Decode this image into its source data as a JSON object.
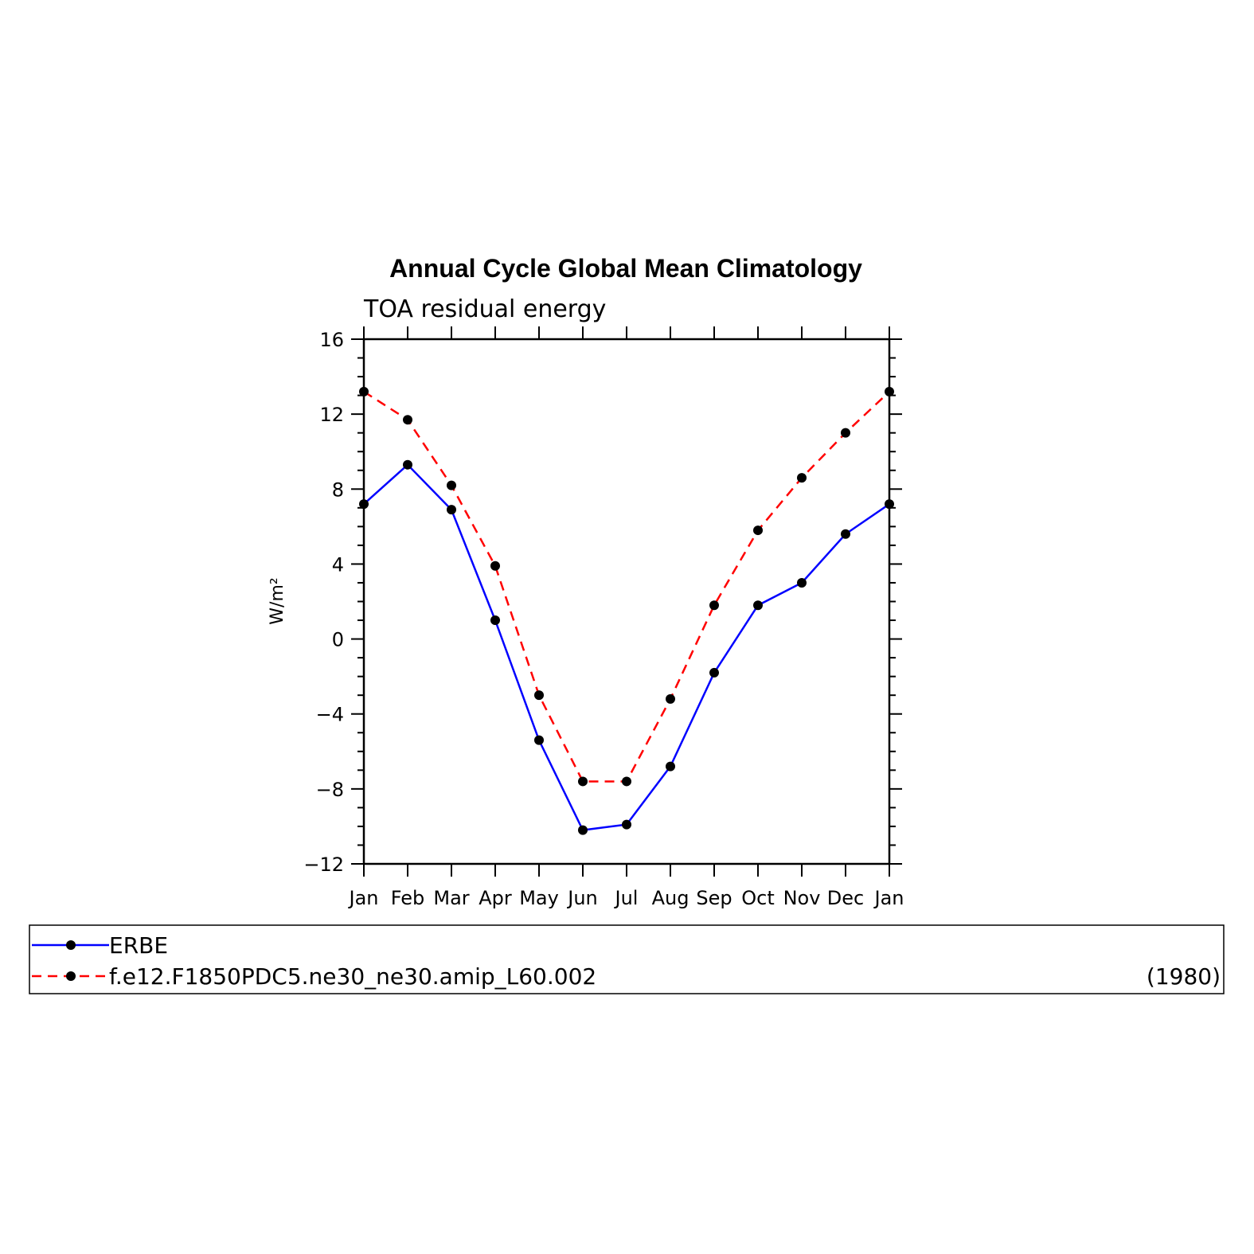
{
  "chart_data": {
    "type": "line",
    "title": "Annual Cycle Global Mean Climatology",
    "subtitle": "TOA residual energy",
    "ylabel": "W/m²",
    "xlabel": "",
    "categories": [
      "Jan",
      "Feb",
      "Mar",
      "Apr",
      "May",
      "Jun",
      "Jul",
      "Aug",
      "Sep",
      "Oct",
      "Nov",
      "Dec",
      "Jan"
    ],
    "ylim": [
      -12,
      16
    ],
    "yticks": [
      -12,
      -8,
      -4,
      0,
      4,
      8,
      12,
      16
    ],
    "ytick_labels": [
      "−12",
      "−8",
      "−4",
      "0",
      "4",
      "8",
      "12",
      "16"
    ],
    "grid": false,
    "legend_position": "bottom",
    "series": [
      {
        "name": "ERBE",
        "color": "#0000ff",
        "linestyle": "solid",
        "values": [
          7.2,
          9.3,
          6.9,
          1.0,
          -5.4,
          -10.2,
          -9.9,
          -6.8,
          -1.8,
          1.8,
          3.0,
          5.6,
          7.2
        ]
      },
      {
        "name": "f.e12.F1850PDC5.ne30_ne30.amip_L60.002",
        "color": "#ff0000",
        "linestyle": "dashed",
        "values": [
          13.2,
          11.7,
          8.2,
          3.9,
          -3.0,
          -7.6,
          -7.6,
          -3.2,
          1.8,
          5.8,
          8.6,
          11.0,
          13.2
        ]
      }
    ],
    "legend_note": "(1980)"
  }
}
